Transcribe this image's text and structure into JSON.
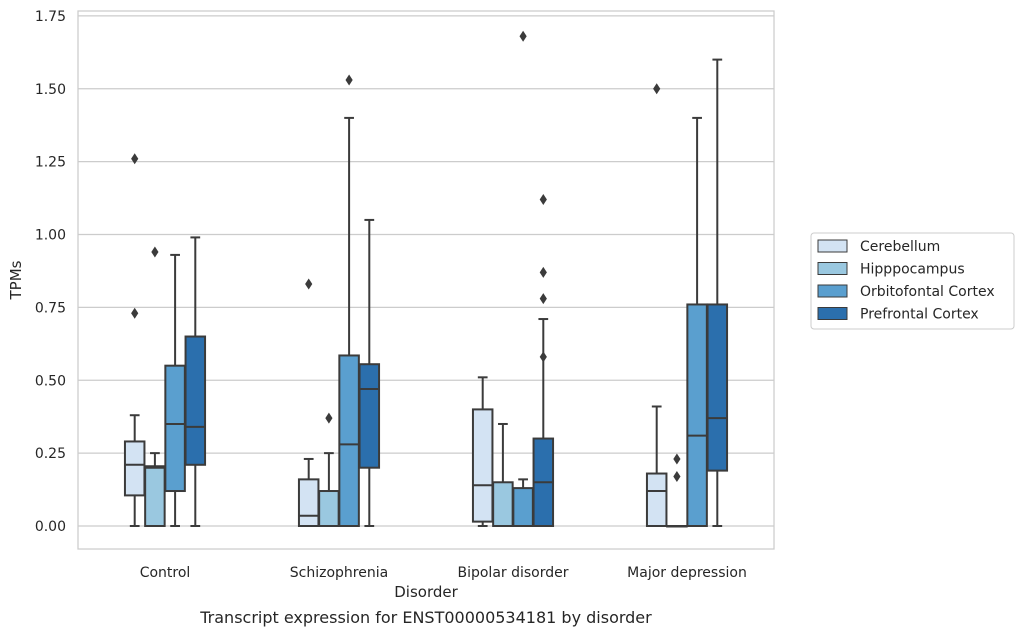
{
  "chart_data": {
    "type": "box",
    "title": "",
    "caption": "Transcript expression for ENST00000534181 by disorder",
    "xlabel": "Disorder",
    "ylabel": "TPMs",
    "ylim": [
      -0.08,
      1.76
    ],
    "yticks": [
      0.0,
      0.25,
      0.5,
      0.75,
      1.0,
      1.25,
      1.5,
      1.75
    ],
    "ytick_labels": [
      "0.00",
      "0.25",
      "0.50",
      "0.75",
      "1.00",
      "1.25",
      "1.50",
      "1.75"
    ],
    "grid": "horizontal",
    "legend_position": "right",
    "categories": [
      "Control",
      "Schizophrenia",
      "Bipolar disorder",
      "Major depression"
    ],
    "series": [
      {
        "name": "Cerebellum",
        "color": "#d3e3f3",
        "boxes": [
          {
            "whislo": 0.0,
            "q1": 0.105,
            "med": 0.21,
            "q3": 0.29,
            "whishi": 0.38,
            "fliers": [
              0.73,
              1.26
            ]
          },
          {
            "whislo": 0.0,
            "q1": 0.0,
            "med": 0.035,
            "q3": 0.16,
            "whishi": 0.23,
            "fliers": [
              0.83
            ]
          },
          {
            "whislo": 0.0,
            "q1": 0.015,
            "med": 0.14,
            "q3": 0.4,
            "whishi": 0.51,
            "fliers": []
          },
          {
            "whislo": 0.0,
            "q1": 0.0,
            "med": 0.12,
            "q3": 0.18,
            "whishi": 0.41,
            "fliers": [
              1.5
            ]
          }
        ]
      },
      {
        "name": "Hipppocampus",
        "color": "#9ac8e0",
        "boxes": [
          {
            "whislo": 0.0,
            "q1": 0.0,
            "med": 0.2,
            "q3": 0.205,
            "whishi": 0.25,
            "fliers": [
              0.94
            ]
          },
          {
            "whislo": 0.0,
            "q1": 0.0,
            "med": 0.0,
            "q3": 0.12,
            "whishi": 0.25,
            "fliers": [
              0.37
            ]
          },
          {
            "whislo": 0.0,
            "q1": 0.0,
            "med": 0.0,
            "q3": 0.15,
            "whishi": 0.35,
            "fliers": []
          },
          {
            "whislo": 0.0,
            "q1": 0.0,
            "med": 0.0,
            "q3": 0.0,
            "whishi": 0.0,
            "fliers": [
              0.17,
              0.23
            ]
          }
        ]
      },
      {
        "name": "Orbitofontal Cortex",
        "color": "#5a9fcf",
        "boxes": [
          {
            "whislo": 0.0,
            "q1": 0.12,
            "med": 0.35,
            "q3": 0.55,
            "whishi": 0.93,
            "fliers": []
          },
          {
            "whislo": 0.0,
            "q1": 0.0,
            "med": 0.28,
            "q3": 0.585,
            "whishi": 1.4,
            "fliers": [
              1.53
            ]
          },
          {
            "whislo": 0.0,
            "q1": 0.0,
            "med": 0.0,
            "q3": 0.13,
            "whishi": 0.16,
            "fliers": [
              1.68
            ]
          },
          {
            "whislo": 0.0,
            "q1": 0.0,
            "med": 0.31,
            "q3": 0.76,
            "whishi": 1.4,
            "fliers": []
          }
        ]
      },
      {
        "name": "Prefrontal Cortex",
        "color": "#2b6fad",
        "boxes": [
          {
            "whislo": 0.0,
            "q1": 0.21,
            "med": 0.34,
            "q3": 0.65,
            "whishi": 0.99,
            "fliers": []
          },
          {
            "whislo": 0.0,
            "q1": 0.2,
            "med": 0.47,
            "q3": 0.555,
            "whishi": 1.05,
            "fliers": []
          },
          {
            "whislo": 0.0,
            "q1": 0.0,
            "med": 0.15,
            "q3": 0.3,
            "whishi": 0.71,
            "fliers": [
              0.58,
              0.78,
              0.87,
              1.12
            ]
          },
          {
            "whislo": 0.0,
            "q1": 0.19,
            "med": 0.37,
            "q3": 0.76,
            "whishi": 1.6,
            "fliers": []
          }
        ]
      }
    ]
  }
}
